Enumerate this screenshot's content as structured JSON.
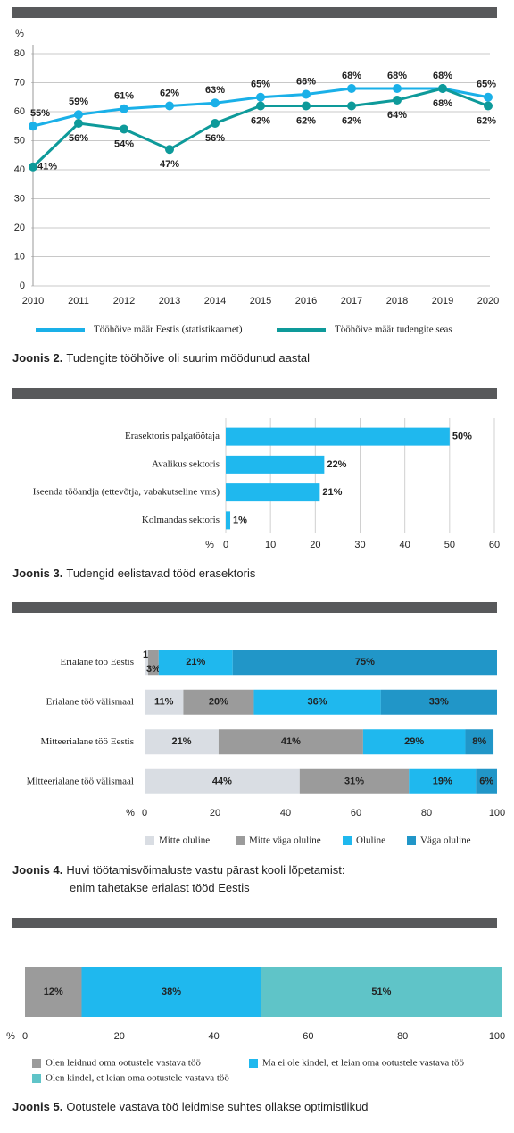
{
  "chart_data": [
    {
      "type": "line",
      "y_label": "%",
      "caption_label": "Joonis 2.",
      "caption": "Tudengite tööhõive oli suurim möödunud aastal",
      "x": [
        2010,
        2011,
        2012,
        2013,
        2014,
        2015,
        2016,
        2017,
        2018,
        2019,
        2020
      ],
      "xlim": [
        2010,
        2020
      ],
      "xticks": [
        2010,
        2011,
        2012,
        2013,
        2014,
        2015,
        2016,
        2017,
        2018,
        2019,
        2020
      ],
      "ylim": [
        0,
        80
      ],
      "yticks": [
        0,
        10,
        20,
        30,
        40,
        50,
        60,
        70,
        80
      ],
      "grid": true,
      "series": [
        {
          "name": "Tööhõive määr Eestis (statistikaamet)",
          "color": "#1ab0e8",
          "values": [
            55,
            59,
            61,
            62,
            63,
            65,
            66,
            68,
            68,
            68,
            65
          ],
          "value_labels": [
            "55%",
            "59%",
            "61%",
            "62%",
            "63%",
            "65%",
            "66%",
            "68%",
            "68%",
            "68%",
            "65%"
          ]
        },
        {
          "name": "Tööhõive määr tudengite seas",
          "color": "#0e9a9a",
          "values": [
            41,
            56,
            54,
            47,
            56,
            62,
            62,
            62,
            64,
            68,
            62
          ],
          "value_labels": [
            "41%",
            "56%",
            "54%",
            "47%",
            "56%",
            "62%",
            "62%",
            "62%",
            "64%",
            "68%",
            "62%"
          ]
        }
      ]
    },
    {
      "type": "bar",
      "x_label": "%",
      "caption_label": "Joonis 3.",
      "caption": "Tudengid eelistavad tööd erasektoris",
      "categories": [
        "Erasektoris palgatöötaja",
        "Avalikus sektoris",
        "Iseenda tööandja (ettevõtja, vabakutseline vms)",
        "Kolmandas sektoris"
      ],
      "values": [
        50,
        22,
        21,
        1
      ],
      "value_labels": [
        "50%",
        "22%",
        "21%",
        "1%"
      ],
      "color": "#1fb8ee",
      "xlim": [
        0,
        60
      ],
      "xticks": [
        0,
        10,
        20,
        30,
        40,
        50,
        60
      ],
      "grid": true
    },
    {
      "type": "stacked_bar",
      "x_label": "%",
      "caption_label": "Joonis 4.",
      "caption": [
        "Huvi töötamisvõimaluste vastu pärast kooli lõpetamist:",
        "enim tahetakse erialast tööd Eestis"
      ],
      "categories": [
        "Erialane töö Eestis",
        "Erialane töö välismaal",
        "Mitteerialane töö Eestis",
        "Mitteerialane töö välismaal"
      ],
      "xlim": [
        0,
        100
      ],
      "xticks": [
        0,
        20,
        40,
        60,
        80,
        100
      ],
      "series": [
        {
          "name": "Mitte oluline",
          "color": "#d9dde3",
          "values": [
            1,
            11,
            21,
            44
          ],
          "value_labels": [
            "1%",
            "11%",
            "21%",
            "44%"
          ]
        },
        {
          "name": "Mitte väga oluline",
          "color": "#9b9b9b",
          "values": [
            3,
            20,
            41,
            31
          ],
          "value_labels": [
            "3%",
            "20%",
            "41%",
            "31%"
          ]
        },
        {
          "name": "Oluline",
          "color": "#1fb8ee",
          "values": [
            21,
            36,
            29,
            19
          ],
          "value_labels": [
            "21%",
            "36%",
            "29%",
            "19%"
          ]
        },
        {
          "name": "Väga oluline",
          "color": "#2196c8",
          "values": [
            75,
            33,
            8,
            6
          ],
          "value_labels": [
            "75%",
            "33%",
            "8%",
            "6%"
          ]
        }
      ]
    },
    {
      "type": "stacked_bar",
      "x_label": "%",
      "caption_label": "Joonis 5.",
      "caption": "Ootustele vastava töö leidmise suhtes ollakse optimistlikud",
      "xlim": [
        0,
        100
      ],
      "xticks": [
        0,
        20,
        40,
        60,
        80,
        100
      ],
      "series": [
        {
          "name": "Olen leidnud oma ootustele vastava töö",
          "color": "#9b9b9b",
          "values": [
            12
          ],
          "value_labels": [
            "12%"
          ]
        },
        {
          "name": "Ma ei ole kindel, et leian oma ootustele vastava töö",
          "color": "#1fb8ee",
          "values": [
            38
          ],
          "value_labels": [
            "38%"
          ]
        },
        {
          "name": "Olen kindel, et leian oma ootustele vastava töö",
          "color": "#5fc4c8",
          "values": [
            51
          ],
          "value_labels": [
            "51%"
          ]
        }
      ]
    }
  ]
}
